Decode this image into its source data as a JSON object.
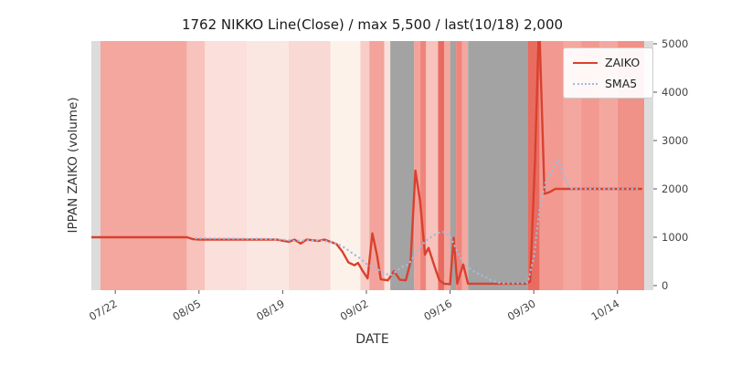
{
  "chart_data": {
    "type": "line",
    "title": "1762 NIKKO Line(Close) / max 5,500 / last(10/18) 2,000",
    "xlabel": "DATE",
    "ylabel": "IPPAN ZAIKO (volume)",
    "x_unit": "days since 07/18",
    "xlim_days": [
      0,
      94
    ],
    "ylim": [
      0,
      5500
    ],
    "grid": false,
    "legend_position": "upper right",
    "x_ticks": [
      {
        "label": "07/22",
        "day": 4
      },
      {
        "label": "08/05",
        "day": 18
      },
      {
        "label": "08/19",
        "day": 32
      },
      {
        "label": "09/02",
        "day": 46
      },
      {
        "label": "09/16",
        "day": 60
      },
      {
        "label": "09/30",
        "day": 74
      },
      {
        "label": "10/14",
        "day": 88
      }
    ],
    "y_ticks": [
      0,
      1000,
      2000,
      3000,
      4000,
      5000
    ],
    "series": [
      {
        "name": "ZAIKO",
        "color": "#d9412f",
        "style": "solid",
        "points": [
          [
            0,
            1000
          ],
          [
            16,
            1000
          ],
          [
            17,
            960
          ],
          [
            18,
            950
          ],
          [
            31,
            950
          ],
          [
            33,
            905
          ],
          [
            34,
            950
          ],
          [
            35,
            870
          ],
          [
            36,
            950
          ],
          [
            38,
            925
          ],
          [
            39,
            950
          ],
          [
            40,
            905
          ],
          [
            41,
            860
          ],
          [
            42,
            700
          ],
          [
            43,
            480
          ],
          [
            44,
            420
          ],
          [
            44.6,
            470
          ],
          [
            45.4,
            300
          ],
          [
            46.2,
            150
          ],
          [
            47,
            1080
          ],
          [
            47.8,
            620
          ],
          [
            48.4,
            130
          ],
          [
            49.6,
            110
          ],
          [
            50.6,
            300
          ],
          [
            51.6,
            120
          ],
          [
            52.6,
            110
          ],
          [
            53.4,
            500
          ],
          [
            54.2,
            2380
          ],
          [
            55,
            1740
          ],
          [
            55.8,
            640
          ],
          [
            56.4,
            780
          ],
          [
            57.4,
            400
          ],
          [
            58.2,
            110
          ],
          [
            59,
            40
          ],
          [
            60,
            30
          ],
          [
            60.6,
            990
          ],
          [
            61.2,
            40
          ],
          [
            62.2,
            440
          ],
          [
            63,
            40
          ],
          [
            72.6,
            40
          ],
          [
            73.4,
            80
          ],
          [
            74.2,
            2600
          ],
          [
            74.9,
            5500
          ],
          [
            75.8,
            1900
          ],
          [
            76.6,
            1930
          ],
          [
            77.6,
            2000
          ],
          [
            92,
            2000
          ]
        ]
      },
      {
        "name": "SMA5",
        "color": "#9fbcdf",
        "style": "dotted",
        "points": [
          [
            17.5,
            980
          ],
          [
            30,
            965
          ],
          [
            32,
            950
          ],
          [
            34,
            925
          ],
          [
            36,
            935
          ],
          [
            38,
            935
          ],
          [
            40,
            905
          ],
          [
            41,
            870
          ],
          [
            42,
            810
          ],
          [
            43,
            730
          ],
          [
            44,
            640
          ],
          [
            45,
            560
          ],
          [
            46,
            450
          ],
          [
            47,
            390
          ],
          [
            48,
            330
          ],
          [
            49,
            260
          ],
          [
            50,
            210
          ],
          [
            51,
            300
          ],
          [
            52,
            390
          ],
          [
            53,
            430
          ],
          [
            54,
            620
          ],
          [
            55,
            800
          ],
          [
            56,
            930
          ],
          [
            57,
            1020
          ],
          [
            58,
            1090
          ],
          [
            59,
            1110
          ],
          [
            60,
            1020
          ],
          [
            61,
            760
          ],
          [
            62,
            500
          ],
          [
            63,
            380
          ],
          [
            64,
            290
          ],
          [
            65,
            230
          ],
          [
            66,
            170
          ],
          [
            67,
            100
          ],
          [
            68,
            60
          ],
          [
            69,
            45
          ],
          [
            72,
            45
          ],
          [
            73,
            60
          ],
          [
            74,
            580
          ],
          [
            75,
            1600
          ],
          [
            76,
            2150
          ],
          [
            77,
            2350
          ],
          [
            78,
            2620
          ],
          [
            78.8,
            2350
          ],
          [
            79.6,
            2080
          ],
          [
            80.4,
            2000
          ],
          [
            92,
            2000
          ]
        ]
      }
    ],
    "background_bands": [
      [
        0,
        1.5,
        "#dcdcdc"
      ],
      [
        1.5,
        16,
        "#f3a79f"
      ],
      [
        16,
        19,
        "#f7c3bc"
      ],
      [
        19,
        26,
        "#fbdfdb"
      ],
      [
        26,
        33,
        "#fae7e2"
      ],
      [
        33,
        40,
        "#f9d9d3"
      ],
      [
        40,
        45,
        "#fdf2ea"
      ],
      [
        45,
        46.5,
        "#f8cdc7"
      ],
      [
        46.5,
        49,
        "#f3a39b"
      ],
      [
        49,
        50,
        "#fbdfdb"
      ],
      [
        50,
        54,
        "#a3a3a3"
      ],
      [
        54,
        55,
        "#f3a39b"
      ],
      [
        55,
        56,
        "#ee857b"
      ],
      [
        56,
        58,
        "#f7c3bc"
      ],
      [
        58,
        59,
        "#ea6a5f"
      ],
      [
        59,
        60,
        "#f3a79f"
      ],
      [
        60,
        61,
        "#a3a3a3"
      ],
      [
        61,
        62,
        "#ee857b"
      ],
      [
        62,
        63,
        "#f3a79f"
      ],
      [
        63,
        73,
        "#a3a3a3"
      ],
      [
        73,
        75,
        "#e96c61"
      ],
      [
        75,
        79,
        "#f29a91"
      ],
      [
        79,
        82,
        "#f3a79f"
      ],
      [
        82,
        85,
        "#f29a91"
      ],
      [
        85,
        88,
        "#f3a79f"
      ],
      [
        88,
        92.5,
        "#f09288"
      ],
      [
        92.5,
        94,
        "#dcdcdc"
      ]
    ]
  }
}
